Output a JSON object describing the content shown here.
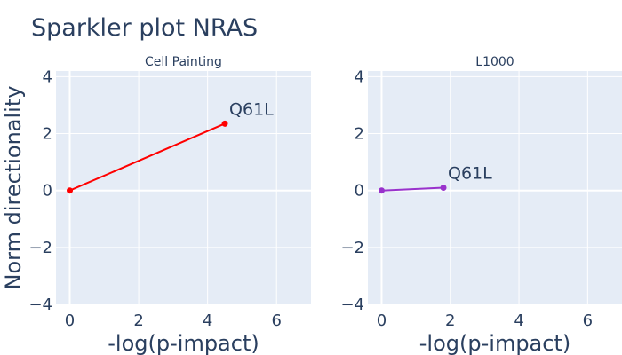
{
  "title": "Sparkler plot NRAS",
  "chart_data": [
    {
      "type": "line",
      "subtitle": "Cell Painting",
      "xlabel": "-log(p-impact)",
      "ylabel": "Norm directionality",
      "xlim": [
        -0.4,
        7
      ],
      "ylim": [
        -4,
        4.2
      ],
      "xticks": [
        0,
        2,
        4,
        6
      ],
      "yticks": [
        -4,
        -2,
        0,
        2,
        4
      ],
      "grid": true,
      "series": [
        {
          "color": "#ff0000",
          "x": [
            0,
            4.5
          ],
          "y": [
            0,
            2.35
          ],
          "point_labels": [
            "",
            "Q61L"
          ]
        }
      ]
    },
    {
      "type": "line",
      "subtitle": "L1000",
      "xlabel": "-log(p-impact)",
      "ylabel": "",
      "xlim": [
        -0.4,
        7
      ],
      "ylim": [
        -4,
        4.2
      ],
      "xticks": [
        0,
        2,
        4,
        6
      ],
      "yticks": [
        -4,
        -2,
        0,
        2,
        4
      ],
      "grid": true,
      "series": [
        {
          "color": "#9932cc",
          "x": [
            0,
            1.8
          ],
          "y": [
            0,
            0.1
          ],
          "point_labels": [
            "",
            "Q61L"
          ]
        }
      ]
    }
  ]
}
